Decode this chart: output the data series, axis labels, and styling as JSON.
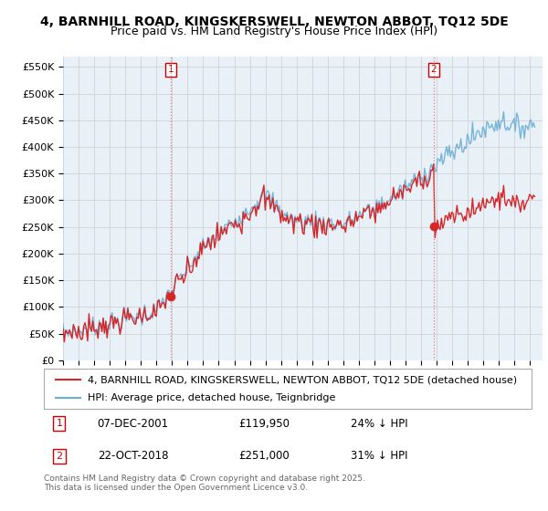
{
  "title": "4, BARNHILL ROAD, KINGSKERSWELL, NEWTON ABBOT, TQ12 5DE",
  "subtitle": "Price paid vs. HM Land Registry's House Price Index (HPI)",
  "yticks": [
    0,
    50000,
    100000,
    150000,
    200000,
    250000,
    300000,
    350000,
    400000,
    450000,
    500000,
    550000
  ],
  "ytick_labels": [
    "£0",
    "£50K",
    "£100K",
    "£150K",
    "£200K",
    "£250K",
    "£300K",
    "£350K",
    "£400K",
    "£450K",
    "£500K",
    "£550K"
  ],
  "xlim_start": 1995.0,
  "xlim_end": 2025.8,
  "ylim": [
    0,
    570000
  ],
  "hpi_color": "#6baed6",
  "price_color": "#d62728",
  "marker_color": "#d62728",
  "transaction1_date": 2001.93,
  "transaction1_price": 119950,
  "transaction2_date": 2018.81,
  "transaction2_price": 251000,
  "legend_label1": "4, BARNHILL ROAD, KINGSKERSWELL, NEWTON ABBOT, TQ12 5DE (detached house)",
  "legend_label2": "HPI: Average price, detached house, Teignbridge",
  "annot1_label": "1",
  "annot1_date": "07-DEC-2001",
  "annot1_price": "£119,950",
  "annot1_hpi": "24% ↓ HPI",
  "annot2_label": "2",
  "annot2_date": "22-OCT-2018",
  "annot2_price": "£251,000",
  "annot2_hpi": "31% ↓ HPI",
  "footer": "Contains HM Land Registry data © Crown copyright and database right 2025.\nThis data is licensed under the Open Government Licence v3.0.",
  "background_color": "#ffffff",
  "grid_color": "#cccccc",
  "plot_bg_color": "#e8f0f8",
  "title_fontsize": 10,
  "subtitle_fontsize": 9,
  "tick_fontsize": 8,
  "legend_fontsize": 8,
  "annot_fontsize": 8
}
